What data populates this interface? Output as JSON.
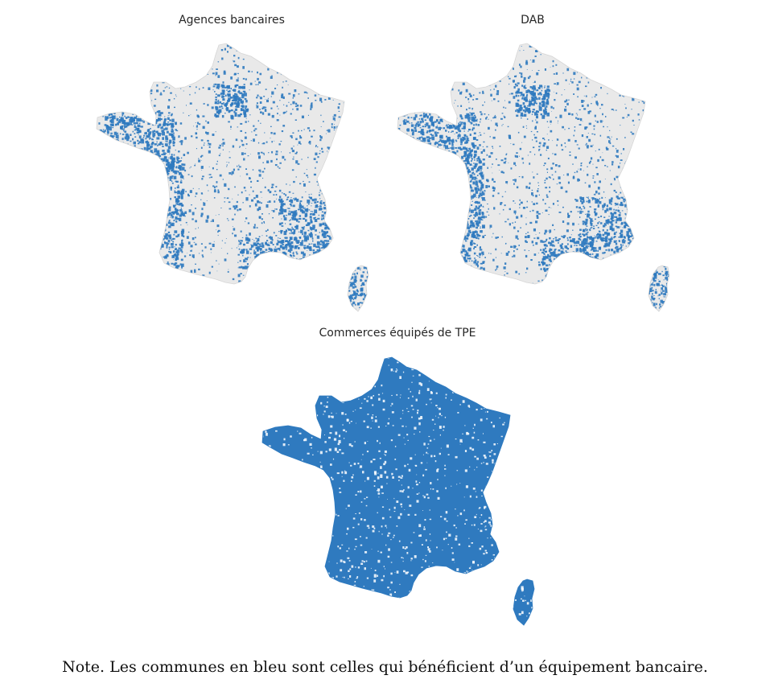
{
  "figure": {
    "note": "Note. Les communes en bleu sont celles qui bénéficient d’un équipement bancaire.",
    "colors": {
      "covered": "#2f7abf",
      "not_covered": "#e9e9e9"
    },
    "panels": [
      {
        "id": "agences",
        "title": "Agences bancaires",
        "coverage": 0.42
      },
      {
        "id": "dab",
        "title": "DAB",
        "coverage": 0.36
      },
      {
        "id": "tpe",
        "title": "Commerces équipés de TPE",
        "coverage": 0.9
      }
    ]
  }
}
